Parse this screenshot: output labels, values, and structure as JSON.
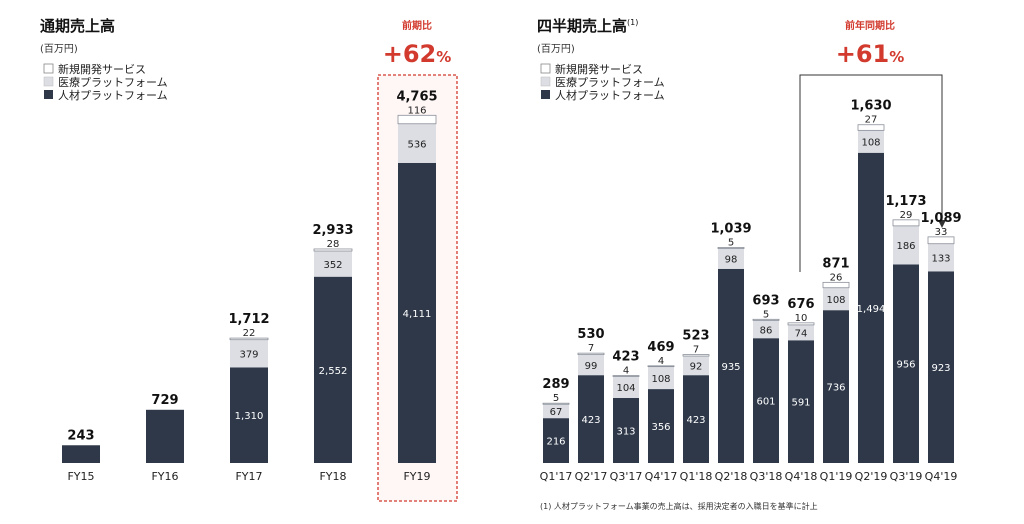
{
  "colors": {
    "jinzai": "#2e3849",
    "iryo": "#dcdee3",
    "shinki": "#ffffff",
    "accent": "#d23a2e",
    "highlight_fill": "#fdf0ee"
  },
  "legend": [
    "新規開発サービス",
    "医療プラットフォーム",
    "人材プラットフォーム"
  ],
  "left": {
    "title": "通期売上高",
    "unit": "(百万円)",
    "growth_label": "前期比",
    "growth_value": "+62",
    "growth_pct": "%"
  },
  "right": {
    "title": "四半期売上高",
    "title_note": "(1)",
    "unit": "(百万円)",
    "growth_label": "前年同期比",
    "growth_value": "+61",
    "growth_pct": "%"
  },
  "footnote": "(1) 人材プラットフォーム事業の売上高は、採用決定者の入職日を基準に計上",
  "chart_data": [
    {
      "type": "bar",
      "stacked": true,
      "title": "通期売上高",
      "categories": [
        "FY15",
        "FY16",
        "FY17",
        "FY18",
        "FY19"
      ],
      "totals": [
        "243",
        "729",
        "1,712",
        "2,933",
        "4,765"
      ],
      "series": [
        {
          "name": "人材プラットフォーム",
          "values": [
            243,
            729,
            1310,
            2552,
            4111
          ],
          "labels": [
            "",
            "",
            "1,310",
            "2,552",
            "4,111"
          ]
        },
        {
          "name": "医療プラットフォーム",
          "values": [
            0,
            0,
            379,
            352,
            536
          ],
          "labels": [
            "",
            "",
            "379",
            "352",
            "536"
          ]
        },
        {
          "name": "新規開発サービス",
          "values": [
            0,
            0,
            22,
            28,
            116
          ],
          "labels": [
            "",
            "",
            "22",
            "28",
            "116"
          ]
        }
      ],
      "ylim": [
        0,
        5000
      ]
    },
    {
      "type": "bar",
      "stacked": true,
      "title": "四半期売上高",
      "categories": [
        "Q1'17",
        "Q2'17",
        "Q3'17",
        "Q4'17",
        "Q1'18",
        "Q2'18",
        "Q3'18",
        "Q4'18",
        "Q1'19",
        "Q2'19",
        "Q3'19",
        "Q4'19"
      ],
      "totals": [
        "289",
        "530",
        "423",
        "469",
        "523",
        "1,039",
        "693",
        "676",
        "871",
        "1,630",
        "1,173",
        "1,089"
      ],
      "series": [
        {
          "name": "人材プラットフォーム",
          "values": [
            216,
            423,
            313,
            356,
            423,
            935,
            601,
            591,
            736,
            1494,
            956,
            923
          ],
          "labels": [
            "216",
            "423",
            "313",
            "356",
            "423",
            "935",
            "601",
            "591",
            "736",
            "1,494",
            "956",
            "923"
          ]
        },
        {
          "name": "医療プラットフォーム",
          "values": [
            67,
            99,
            104,
            108,
            92,
            98,
            86,
            74,
            108,
            108,
            186,
            133
          ],
          "labels": [
            "67",
            "99",
            "104",
            "108",
            "92",
            "98",
            "86",
            "74",
            "108",
            "108",
            "186",
            "133"
          ]
        },
        {
          "name": "新規開発サービス",
          "values": [
            5,
            7,
            4,
            4,
            7,
            5,
            5,
            10,
            26,
            27,
            29,
            33
          ],
          "labels": [
            "5",
            "7",
            "4",
            "4",
            "7",
            "5",
            "5",
            "10",
            "26",
            "27",
            "29",
            "33"
          ]
        }
      ],
      "ylim": [
        0,
        1700
      ]
    }
  ]
}
